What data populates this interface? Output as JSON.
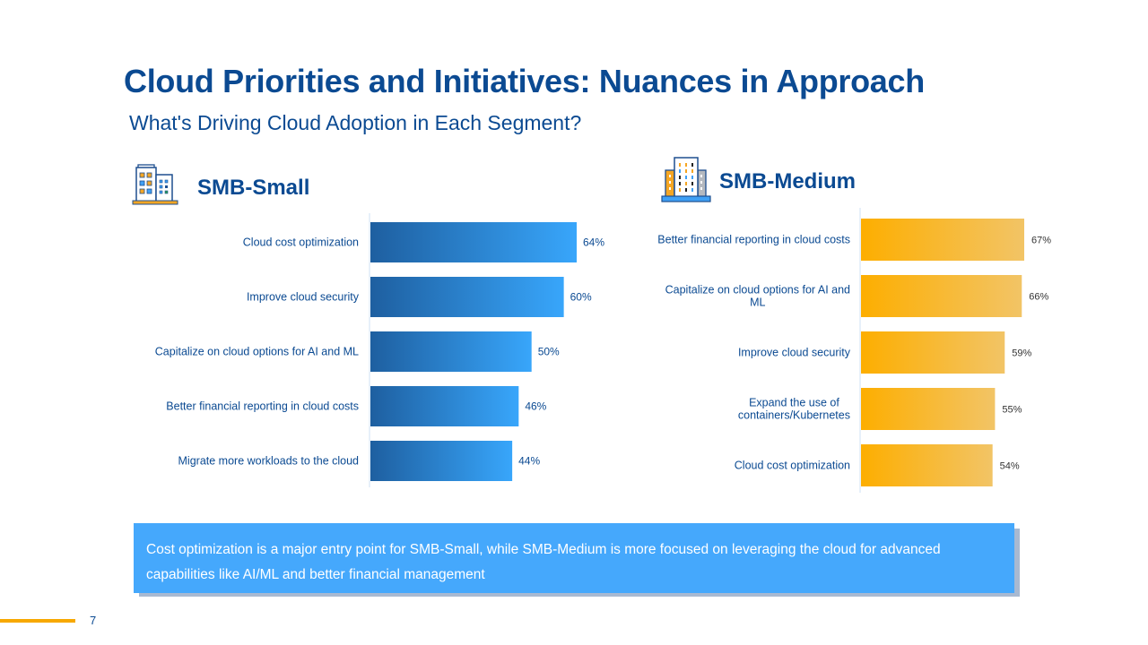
{
  "header": {
    "title": "Cloud Priorities and Initiatives: Nuances in Approach",
    "subtitle": "What's Driving Cloud Adoption in Each Segment?"
  },
  "segments": {
    "small": {
      "title": "SMB-Small",
      "icon": "office-building-icon"
    },
    "medium": {
      "title": "SMB-Medium",
      "icon": "skyscraper-icon"
    }
  },
  "colors": {
    "title": "#0b4a92",
    "small_bar_start": "#1e5fa0",
    "small_bar_end": "#38a6fb",
    "medium_bar_start": "#fdae00",
    "medium_bar_end": "#f2c466",
    "callout_bg": "#45a8fc",
    "footer_accent": "#f7a800"
  },
  "chart_data": [
    {
      "type": "bar",
      "orientation": "horizontal",
      "title": "SMB-Small",
      "categories": [
        "Cloud cost optimization",
        "Improve cloud security",
        "Capitalize on cloud options for AI and ML",
        "Better financial reporting in cloud costs",
        "Migrate more workloads to the cloud"
      ],
      "values": [
        64,
        60,
        50,
        46,
        44
      ],
      "value_labels": [
        "64%",
        "60%",
        "50%",
        "46%",
        "44%"
      ],
      "unit": "%",
      "xlim": [
        0,
        100
      ],
      "grid": false,
      "legend": "none"
    },
    {
      "type": "bar",
      "orientation": "horizontal",
      "title": "SMB-Medium",
      "categories": [
        [
          "Better financial reporting in cloud costs"
        ],
        [
          "Capitalize on cloud options for AI and",
          "ML"
        ],
        [
          "Improve cloud security"
        ],
        [
          "Expand the use of",
          "containers/Kubernetes"
        ],
        [
          "Cloud cost optimization"
        ]
      ],
      "values": [
        67,
        66,
        59,
        55,
        54
      ],
      "value_labels": [
        "67%",
        "66%",
        "59%",
        "55%",
        "54%"
      ],
      "unit": "%",
      "xlim": [
        0,
        100
      ],
      "grid": false,
      "legend": "none"
    }
  ],
  "callout": {
    "text": "Cost optimization is a major entry point for SMB-Small, while SMB-Medium is more focused on leveraging the cloud for advanced capabilities like AI/ML and better financial management"
  },
  "footer": {
    "page_number": "7"
  }
}
